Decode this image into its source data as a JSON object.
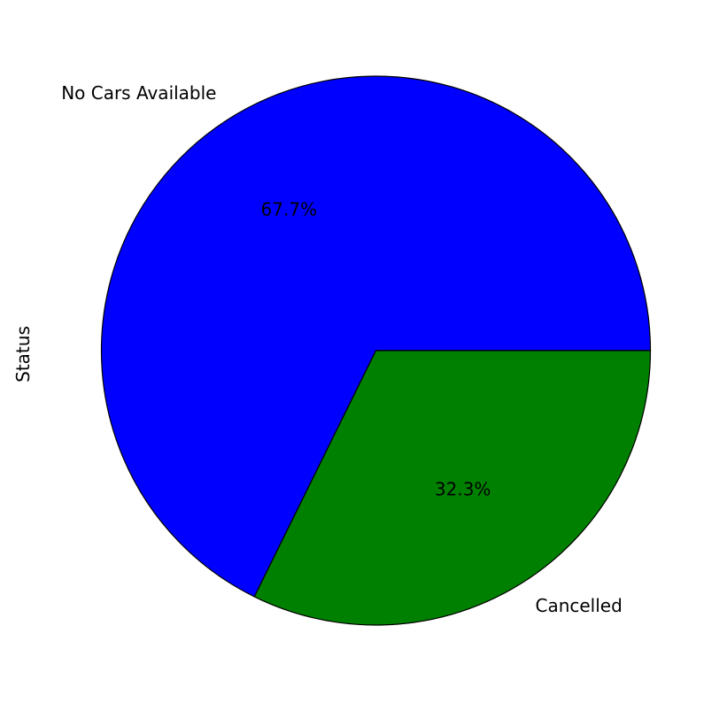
{
  "chart_data": {
    "type": "pie",
    "ylabel": "Status",
    "categories": [
      "No Cars Available",
      "Cancelled"
    ],
    "values": [
      67.7,
      32.3
    ],
    "percent_labels": [
      "67.7%",
      "32.3%"
    ],
    "colors": [
      "#0000ff",
      "#008000"
    ],
    "legend": "none"
  }
}
